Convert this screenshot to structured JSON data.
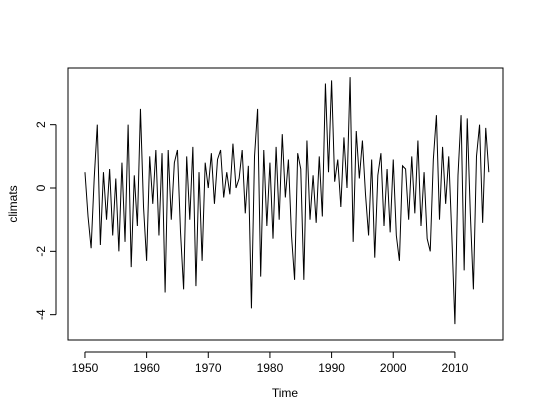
{
  "chart_data": {
    "type": "line",
    "x_label": "Time",
    "y_label": "climats",
    "color": "#000000",
    "x": [
      1950,
      1950.5,
      1951,
      1951.5,
      1952,
      1952.5,
      1953,
      1953.5,
      1954,
      1954.5,
      1955,
      1955.5,
      1956,
      1956.5,
      1957,
      1957.5,
      1958,
      1958.5,
      1959,
      1959.5,
      1960,
      1960.5,
      1961,
      1961.5,
      1962,
      1962.5,
      1963,
      1963.5,
      1964,
      1964.5,
      1965,
      1965.5,
      1966,
      1966.5,
      1967,
      1967.5,
      1968,
      1968.5,
      1969,
      1969.5,
      1970,
      1970.5,
      1971,
      1971.5,
      1972,
      1972.5,
      1973,
      1973.5,
      1974,
      1974.5,
      1975,
      1975.5,
      1976,
      1976.5,
      1977,
      1977.5,
      1978,
      1978.5,
      1979,
      1979.5,
      1980,
      1980.5,
      1981,
      1981.5,
      1982,
      1982.5,
      1983,
      1983.5,
      1984,
      1984.5,
      1985,
      1985.5,
      1986,
      1986.5,
      1987,
      1987.5,
      1988,
      1988.5,
      1989,
      1989.5,
      1990,
      1990.5,
      1991,
      1991.5,
      1992,
      1992.5,
      1993,
      1993.5,
      1994,
      1994.5,
      1995,
      1995.5,
      1996,
      1996.5,
      1997,
      1997.5,
      1998,
      1998.5,
      1999,
      1999.5,
      2000,
      2000.5,
      2001,
      2001.5,
      2002,
      2002.5,
      2003,
      2003.5,
      2004,
      2004.5,
      2005,
      2005.5,
      2006,
      2006.5,
      2007,
      2007.5,
      2008,
      2008.5,
      2009,
      2009.5,
      2010,
      2010.5,
      2011,
      2011.5,
      2012,
      2012.5,
      2013,
      2013.5,
      2014,
      2014.5,
      2015,
      2015.5
    ],
    "values": [
      0.5,
      -0.9,
      -1.9,
      0.3,
      2.0,
      -1.8,
      0.5,
      -1.0,
      0.6,
      -1.5,
      0.3,
      -2.0,
      0.8,
      -1.7,
      2.0,
      -2.5,
      0.4,
      -1.2,
      2.5,
      -0.6,
      -2.3,
      1.0,
      -0.5,
      1.2,
      -1.5,
      1.1,
      -3.3,
      1.2,
      -1.0,
      0.8,
      1.2,
      -1.4,
      -3.2,
      1.0,
      -1.0,
      1.3,
      -3.1,
      0.5,
      -2.3,
      0.8,
      0.0,
      1.1,
      -0.5,
      0.9,
      1.2,
      -0.3,
      0.5,
      -0.2,
      1.4,
      0.0,
      0.3,
      1.2,
      -0.8,
      0.7,
      -3.8,
      1.0,
      2.5,
      -2.8,
      1.2,
      -1.2,
      0.8,
      -1.6,
      1.3,
      -1.0,
      1.7,
      -0.3,
      0.9,
      -1.5,
      -2.9,
      1.1,
      0.6,
      -2.9,
      1.5,
      -1.0,
      0.4,
      -1.1,
      1.0,
      -0.9,
      3.3,
      0.5,
      3.4,
      0.2,
      0.9,
      -0.6,
      1.6,
      0.0,
      3.5,
      -1.7,
      1.8,
      0.3,
      1.5,
      -0.2,
      -1.5,
      0.9,
      -2.2,
      0.4,
      1.1,
      -1.2,
      0.6,
      -1.4,
      0.9,
      -1.5,
      -2.3,
      0.7,
      0.6,
      -1.0,
      1.0,
      -0.8,
      1.5,
      -1.2,
      0.5,
      -1.6,
      -2.0,
      0.9,
      2.3,
      -1.0,
      1.3,
      -0.5,
      1.0,
      -1.5,
      -4.3,
      0.4,
      2.3,
      -2.6,
      2.2,
      -0.8,
      -3.2,
      1.0,
      2.0,
      -1.1,
      1.9,
      0.5
    ],
    "xlim": [
      1947.25,
      2017.8
    ],
    "ylim": [
      -4.8,
      3.79
    ],
    "xticks": [
      1950,
      1960,
      1970,
      1980,
      1990,
      2000,
      2010
    ],
    "yticks": [
      -4,
      -2,
      0,
      2
    ]
  }
}
